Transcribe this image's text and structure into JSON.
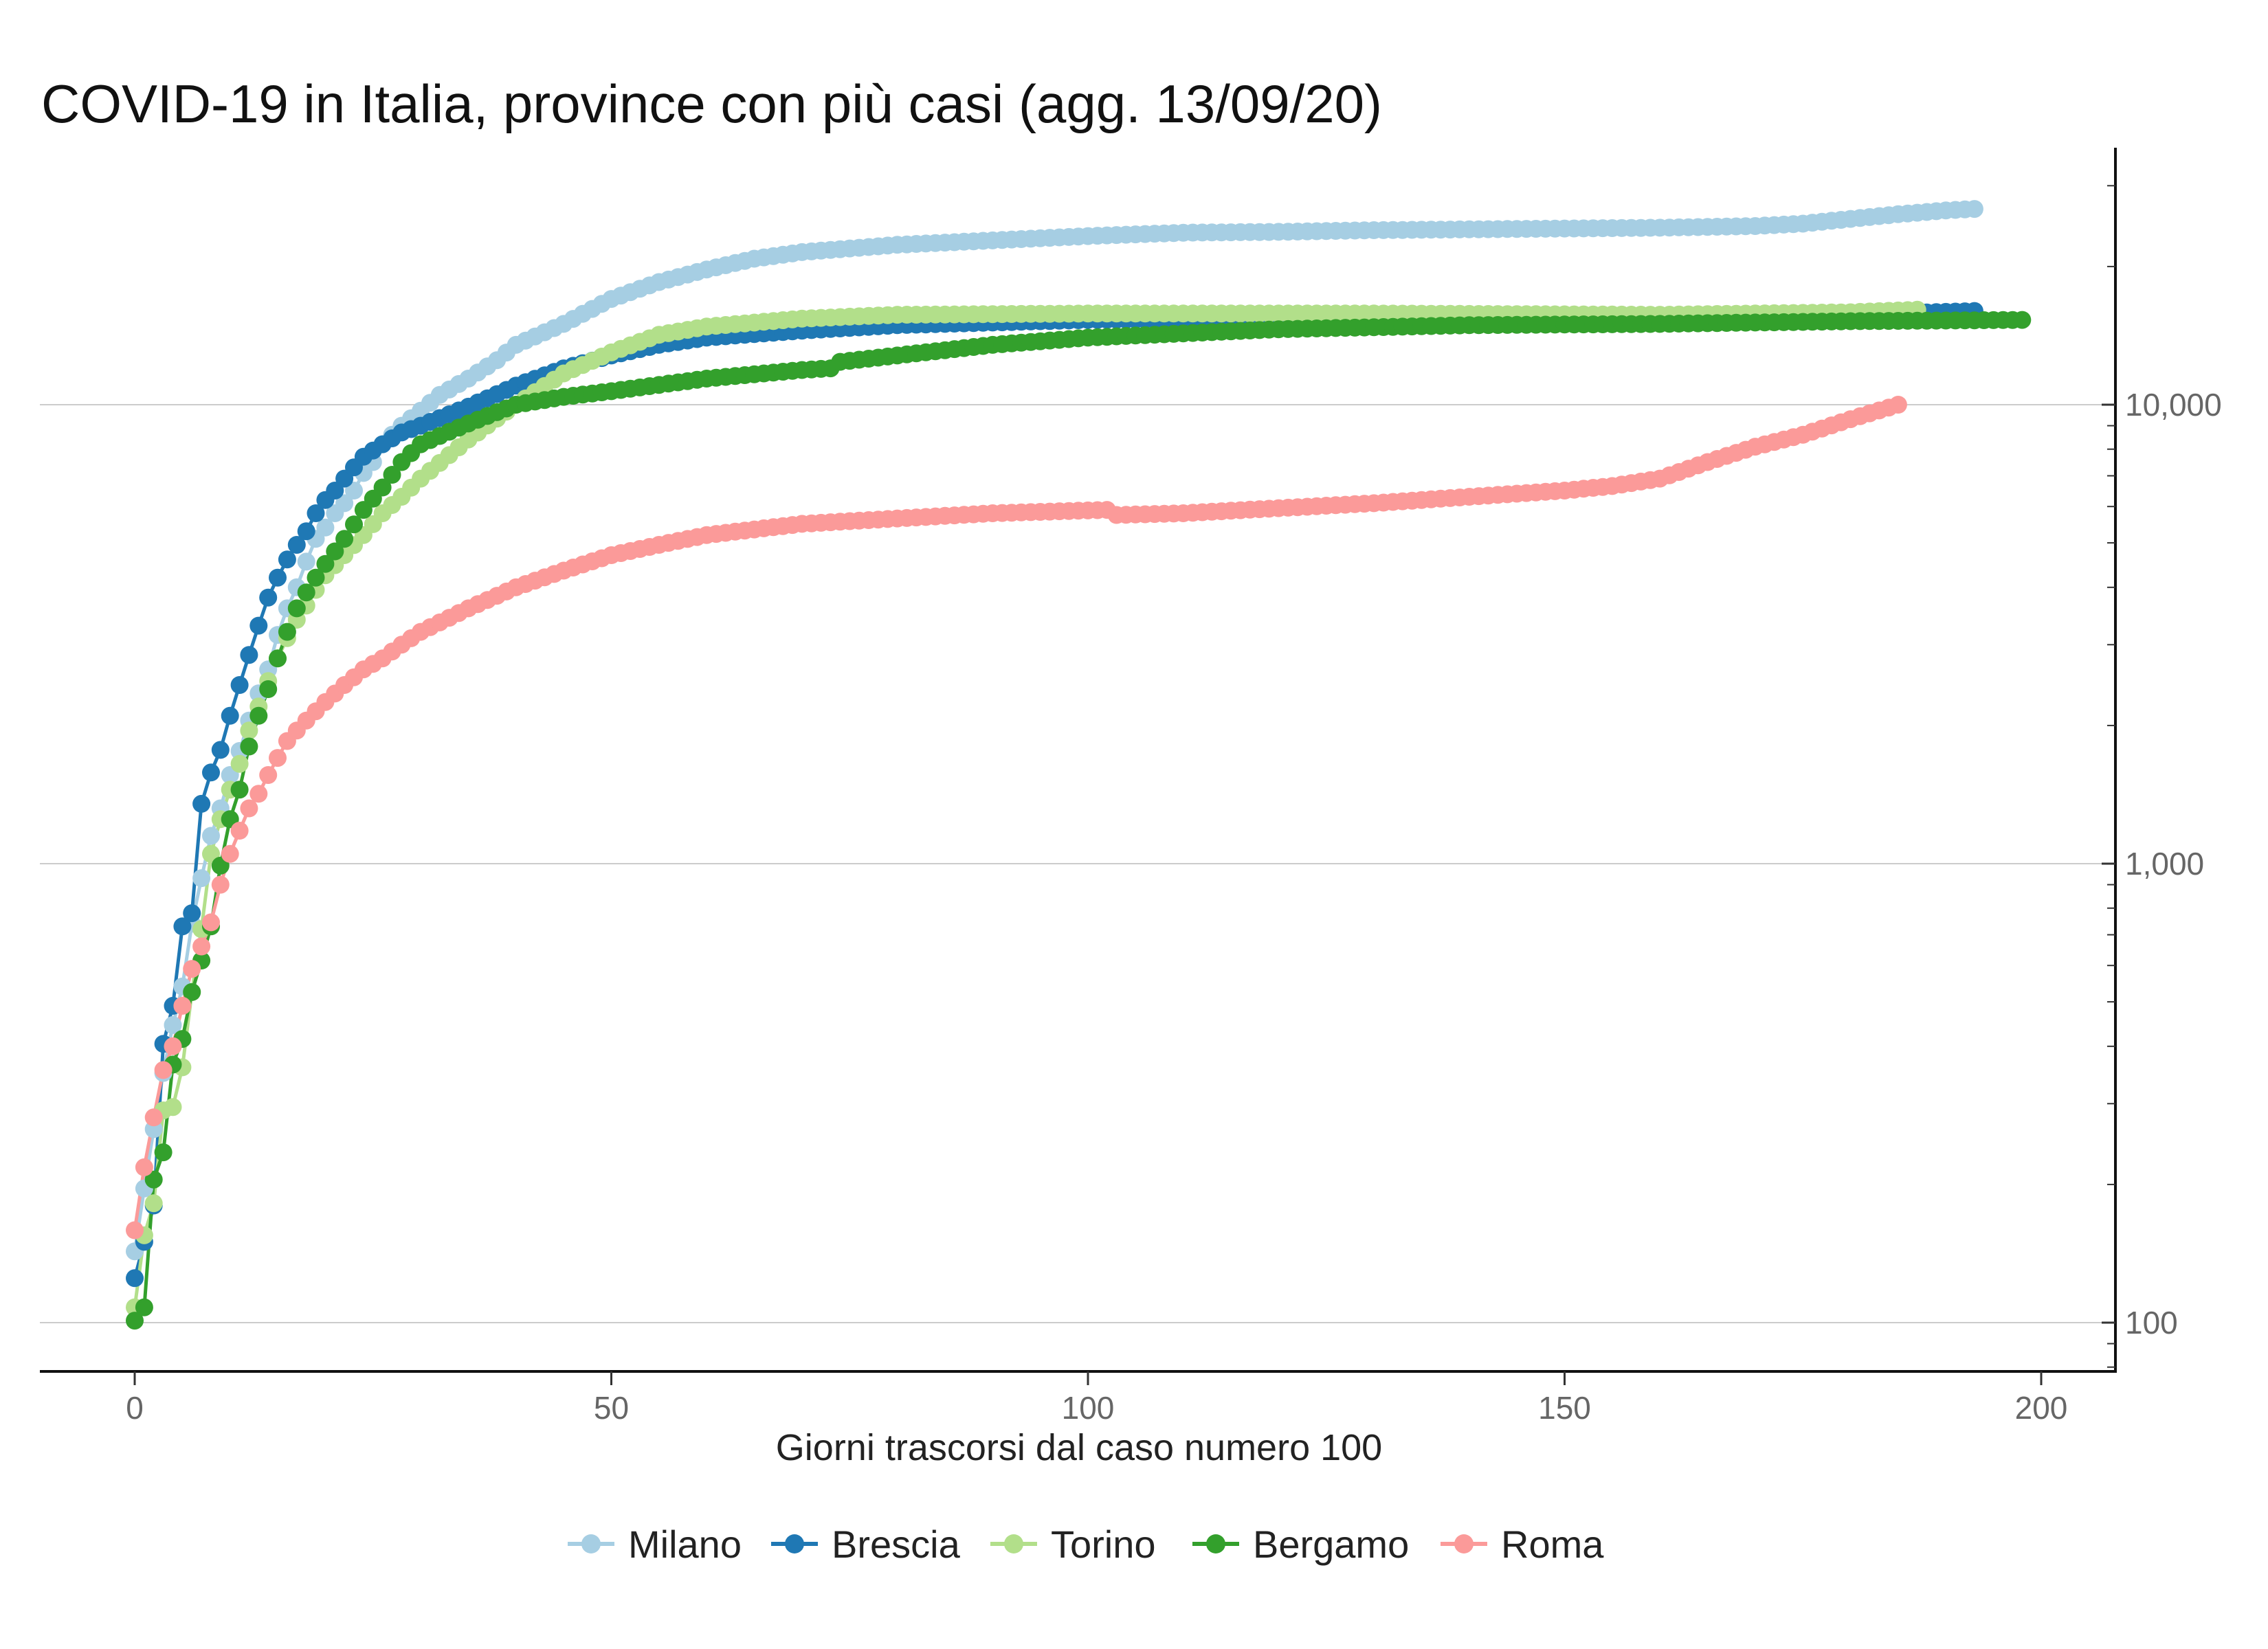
{
  "chart_data": {
    "type": "line",
    "title": "COVID-19 in Italia, province con più casi (agg. 13/09/20)",
    "xlabel": "Giorni trascorsi dal caso numero 100",
    "ylabel": "",
    "x_ticks": [
      "0",
      "50",
      "100",
      "150",
      "200"
    ],
    "y_scale": "log",
    "y_ticks": [
      "100",
      "1,000",
      "10,000"
    ],
    "y_axis_position": "right",
    "xlim": [
      -10,
      208
    ],
    "ylim": [
      78,
      40000
    ],
    "grid": "horizontal major",
    "markers": true,
    "legend_position": "bottom",
    "series": [
      {
        "name": "Milano",
        "color": "#a6cee3",
        "points": [
          [
            0,
            143
          ],
          [
            1,
            196
          ],
          [
            2,
            264
          ],
          [
            3,
            350
          ],
          [
            4,
            445
          ],
          [
            5,
            540
          ],
          [
            6,
            740
          ],
          [
            7,
            930
          ],
          [
            8,
            1150
          ],
          [
            9,
            1320
          ],
          [
            10,
            1560
          ],
          [
            11,
            1760
          ],
          [
            12,
            2050
          ],
          [
            13,
            2350
          ],
          [
            14,
            2650
          ],
          [
            15,
            3150
          ],
          [
            16,
            3600
          ],
          [
            17,
            4000
          ],
          [
            18,
            4550
          ],
          [
            19,
            5100
          ],
          [
            20,
            5400
          ],
          [
            21,
            5800
          ],
          [
            22,
            6100
          ],
          [
            23,
            6500
          ],
          [
            24,
            7100
          ],
          [
            25,
            7500
          ],
          [
            26,
            8200
          ],
          [
            27,
            8600
          ],
          [
            28,
            9000
          ],
          [
            30,
            9700
          ],
          [
            32,
            10500
          ],
          [
            35,
            11400
          ],
          [
            38,
            12500
          ],
          [
            40,
            13500
          ],
          [
            45,
            15000
          ],
          [
            50,
            17000
          ],
          [
            55,
            18500
          ],
          [
            60,
            19700
          ],
          [
            65,
            20800
          ],
          [
            70,
            21500
          ],
          [
            80,
            22300
          ],
          [
            90,
            22800
          ],
          [
            100,
            23300
          ],
          [
            110,
            23700
          ],
          [
            120,
            23800
          ],
          [
            130,
            24000
          ],
          [
            140,
            24100
          ],
          [
            150,
            24200
          ],
          [
            160,
            24300
          ],
          [
            170,
            24500
          ],
          [
            175,
            24800
          ],
          [
            180,
            25400
          ],
          [
            185,
            26000
          ],
          [
            190,
            26500
          ],
          [
            193,
            26700
          ]
        ]
      },
      {
        "name": "Brescia",
        "color": "#1f78b4",
        "points": [
          [
            0,
            125
          ],
          [
            1,
            150
          ],
          [
            2,
            180
          ],
          [
            3,
            405
          ],
          [
            4,
            490
          ],
          [
            5,
            730
          ],
          [
            6,
            780
          ],
          [
            7,
            1350
          ],
          [
            8,
            1580
          ],
          [
            9,
            1770
          ],
          [
            10,
            2100
          ],
          [
            11,
            2450
          ],
          [
            12,
            2850
          ],
          [
            13,
            3300
          ],
          [
            14,
            3800
          ],
          [
            15,
            4200
          ],
          [
            16,
            4600
          ],
          [
            17,
            4950
          ],
          [
            18,
            5300
          ],
          [
            19,
            5800
          ],
          [
            20,
            6200
          ],
          [
            21,
            6500
          ],
          [
            22,
            6900
          ],
          [
            23,
            7300
          ],
          [
            24,
            7700
          ],
          [
            26,
            8200
          ],
          [
            28,
            8700
          ],
          [
            30,
            9000
          ],
          [
            35,
            9900
          ],
          [
            40,
            11000
          ],
          [
            45,
            12000
          ],
          [
            50,
            12800
          ],
          [
            55,
            13500
          ],
          [
            60,
            14000
          ],
          [
            70,
            14500
          ],
          [
            80,
            14900
          ],
          [
            90,
            15100
          ],
          [
            100,
            15300
          ],
          [
            120,
            15400
          ],
          [
            150,
            15500
          ],
          [
            180,
            15700
          ],
          [
            193,
            16000
          ]
        ]
      },
      {
        "name": "Torino",
        "color": "#b2df8a",
        "points": [
          [
            0,
            108
          ],
          [
            1,
            155
          ],
          [
            2,
            182
          ],
          [
            3,
            290
          ],
          [
            4,
            295
          ],
          [
            5,
            360
          ],
          [
            6,
            525
          ],
          [
            7,
            720
          ],
          [
            8,
            1050
          ],
          [
            9,
            1250
          ],
          [
            10,
            1450
          ],
          [
            11,
            1650
          ],
          [
            12,
            1950
          ],
          [
            13,
            2200
          ],
          [
            14,
            2500
          ],
          [
            15,
            2800
          ],
          [
            16,
            3100
          ],
          [
            17,
            3400
          ],
          [
            18,
            3650
          ],
          [
            19,
            3950
          ],
          [
            20,
            4250
          ],
          [
            22,
            4700
          ],
          [
            24,
            5200
          ],
          [
            26,
            5800
          ],
          [
            28,
            6300
          ],
          [
            30,
            6900
          ],
          [
            35,
            8400
          ],
          [
            40,
            10000
          ],
          [
            45,
            11700
          ],
          [
            50,
            13000
          ],
          [
            55,
            14200
          ],
          [
            60,
            14800
          ],
          [
            70,
            15400
          ],
          [
            80,
            15700
          ],
          [
            100,
            15800
          ],
          [
            130,
            15800
          ],
          [
            160,
            15700
          ],
          [
            180,
            15900
          ],
          [
            187,
            16100
          ]
        ]
      },
      {
        "name": "Bergamo",
        "color": "#33a02c",
        "points": [
          [
            0,
            101
          ],
          [
            1,
            108
          ],
          [
            2,
            205
          ],
          [
            3,
            235
          ],
          [
            4,
            365
          ],
          [
            5,
            415
          ],
          [
            6,
            525
          ],
          [
            7,
            615
          ],
          [
            8,
            730
          ],
          [
            9,
            990
          ],
          [
            10,
            1250
          ],
          [
            11,
            1450
          ],
          [
            12,
            1800
          ],
          [
            13,
            2100
          ],
          [
            14,
            2400
          ],
          [
            15,
            2800
          ],
          [
            16,
            3200
          ],
          [
            17,
            3600
          ],
          [
            18,
            3900
          ],
          [
            19,
            4200
          ],
          [
            20,
            4500
          ],
          [
            22,
            5100
          ],
          [
            24,
            5900
          ],
          [
            26,
            6600
          ],
          [
            28,
            7500
          ],
          [
            30,
            8200
          ],
          [
            35,
            9100
          ],
          [
            40,
            10000
          ],
          [
            45,
            10400
          ],
          [
            50,
            10700
          ],
          [
            60,
            11400
          ],
          [
            70,
            11900
          ],
          [
            73,
            12000
          ],
          [
            74,
            12400
          ],
          [
            80,
            12800
          ],
          [
            90,
            13500
          ],
          [
            100,
            14000
          ],
          [
            110,
            14300
          ],
          [
            120,
            14600
          ],
          [
            140,
            14900
          ],
          [
            160,
            15000
          ],
          [
            180,
            15200
          ],
          [
            198,
            15300
          ]
        ]
      },
      {
        "name": "Roma",
        "color": "#fb9a99",
        "points": [
          [
            0,
            159
          ],
          [
            1,
            218
          ],
          [
            2,
            280
          ],
          [
            3,
            355
          ],
          [
            4,
            400
          ],
          [
            5,
            490
          ],
          [
            6,
            590
          ],
          [
            7,
            660
          ],
          [
            8,
            745
          ],
          [
            9,
            900
          ],
          [
            10,
            1050
          ],
          [
            11,
            1180
          ],
          [
            12,
            1320
          ],
          [
            13,
            1420
          ],
          [
            14,
            1560
          ],
          [
            15,
            1700
          ],
          [
            16,
            1850
          ],
          [
            17,
            1950
          ],
          [
            18,
            2050
          ],
          [
            20,
            2250
          ],
          [
            22,
            2450
          ],
          [
            24,
            2650
          ],
          [
            26,
            2800
          ],
          [
            28,
            3000
          ],
          [
            30,
            3200
          ],
          [
            35,
            3600
          ],
          [
            40,
            4000
          ],
          [
            45,
            4350
          ],
          [
            50,
            4700
          ],
          [
            55,
            4950
          ],
          [
            60,
            5200
          ],
          [
            70,
            5500
          ],
          [
            80,
            5650
          ],
          [
            90,
            5800
          ],
          [
            102,
            5900
          ],
          [
            103,
            5750
          ],
          [
            110,
            5800
          ],
          [
            120,
            5950
          ],
          [
            130,
            6100
          ],
          [
            140,
            6300
          ],
          [
            150,
            6500
          ],
          [
            155,
            6650
          ],
          [
            160,
            6900
          ],
          [
            165,
            7500
          ],
          [
            170,
            8100
          ],
          [
            175,
            8600
          ],
          [
            180,
            9300
          ],
          [
            185,
            10000
          ]
        ]
      }
    ]
  }
}
